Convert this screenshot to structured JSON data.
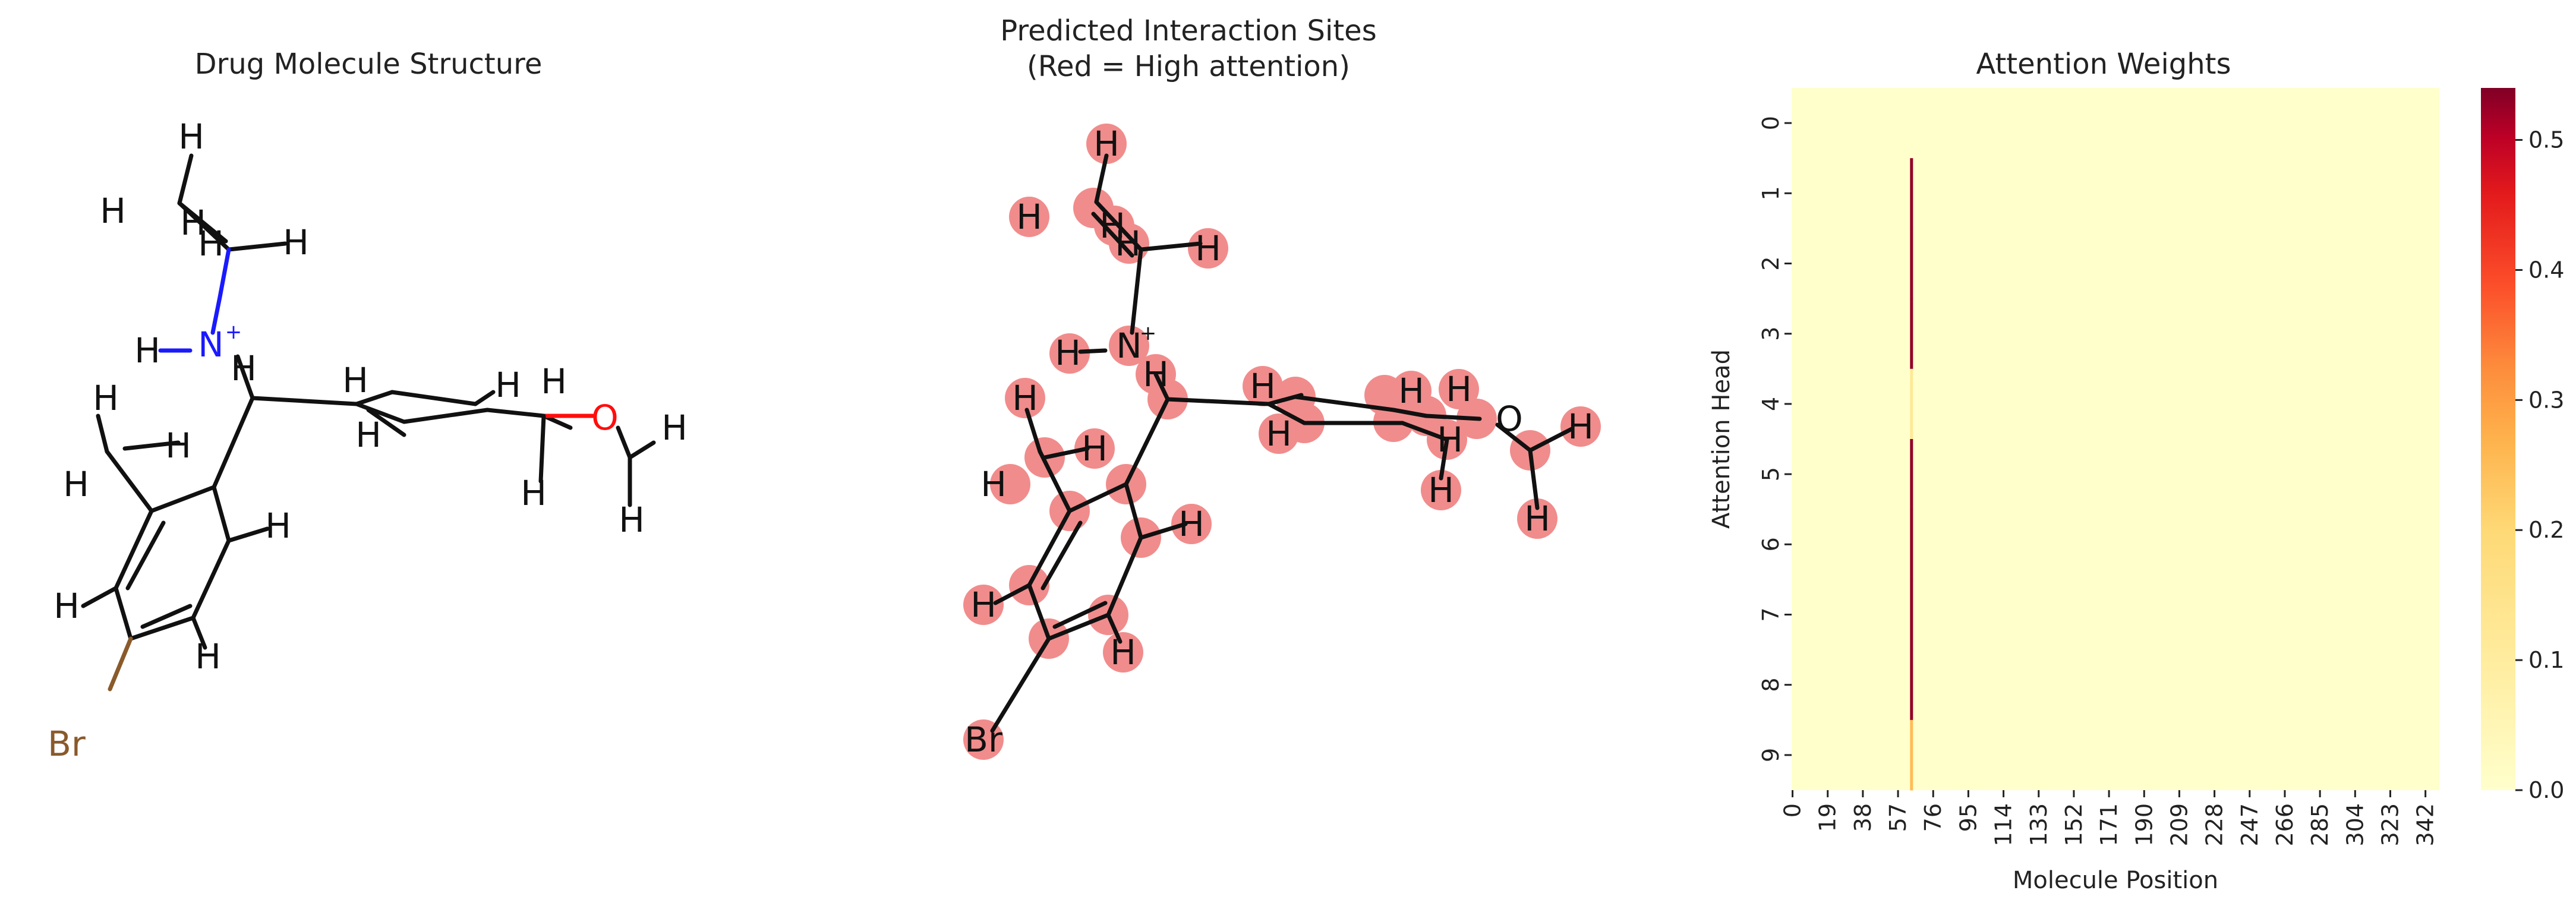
{
  "panels": {
    "left": {
      "title": "Drug Molecule Structure",
      "atom_labels": {
        "h1": "H",
        "h2": "H",
        "h3": "H",
        "h4": "H",
        "nh": "H",
        "n": "N",
        "nplus": "+",
        "h6": "H",
        "h7": "H",
        "h8": "H",
        "h9": "H",
        "h10": "H",
        "h11": "H",
        "h12": "H",
        "h13": "H",
        "h14": "H",
        "h15": "H",
        "h16": "H",
        "h17": "H",
        "h18": "H",
        "h19": "H",
        "o": "O",
        "h20": "H",
        "h21": "H",
        "br": "Br"
      }
    },
    "middle": {
      "title_line1": "Predicted Interaction Sites",
      "title_line2": "(Red = High attention)",
      "atom_labels": {
        "h1": "H",
        "h2": "H",
        "h3": "H",
        "h4": "H",
        "h5": "H",
        "nh": "H",
        "n": "N",
        "nplus": "+",
        "h6": "H",
        "h7": "H",
        "h8": "H",
        "h9": "H",
        "h10": "H",
        "h11": "H",
        "h12": "H",
        "h13": "H",
        "h14": "H",
        "h15": "H",
        "h16": "H",
        "h17": "H",
        "h18": "H",
        "h19": "H",
        "o": "O",
        "h20": "H",
        "br": "Br"
      }
    },
    "right": {
      "title": "Attention Weights"
    }
  },
  "colors": {
    "bond": "#111111",
    "nitrogen": "#1a1aff",
    "oxygen": "#ff0d0d",
    "bromine": "#8a5a2b",
    "highlight": "#f08080",
    "heat_low": "#ffffcc",
    "heat_mid": "#fd8d3c",
    "heat_high": "#800026"
  },
  "chart_data": {
    "type": "heatmap",
    "title": "Attention Weights",
    "xlabel": "Molecule Position",
    "ylabel": "Attention Head",
    "n_rows": 10,
    "n_cols": 350,
    "row_labels": [
      "0",
      "1",
      "2",
      "3",
      "4",
      "5",
      "6",
      "7",
      "8",
      "9"
    ],
    "x_tick_values": [
      0,
      19,
      38,
      57,
      76,
      95,
      114,
      133,
      152,
      171,
      190,
      209,
      228,
      247,
      266,
      285,
      304,
      323,
      342
    ],
    "x_tick_labels": [
      "0",
      "19",
      "38",
      "57",
      "76",
      "95",
      "114",
      "133",
      "152",
      "171",
      "190",
      "209",
      "228",
      "247",
      "266",
      "285",
      "304",
      "323",
      "342"
    ],
    "background_value": 0.0,
    "highlighted_column": 64,
    "column_values_by_row": [
      0.0,
      0.53,
      0.53,
      0.53,
      0.12,
      0.53,
      0.53,
      0.53,
      0.53,
      0.25
    ],
    "colorbar": {
      "min": 0.0,
      "max": 0.54,
      "ticks": [
        0.0,
        0.1,
        0.2,
        0.3,
        0.4,
        0.5
      ],
      "tick_labels": [
        "0.0",
        "0.1",
        "0.2",
        "0.3",
        "0.4",
        "0.5"
      ]
    }
  }
}
